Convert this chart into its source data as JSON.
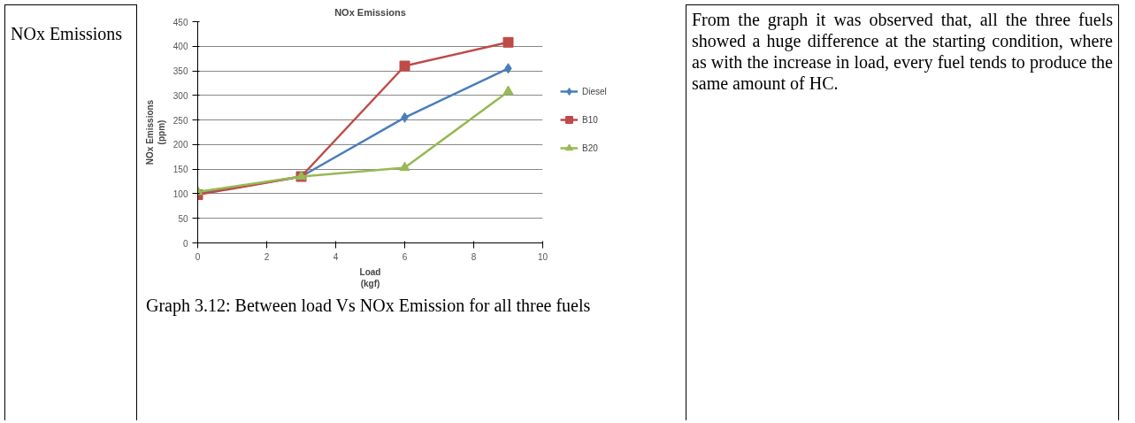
{
  "chart_data": {
    "type": "line",
    "title": "NOx Emissions",
    "xlabel": "Load\n(kgf)",
    "ylabel": "NOx Emissions\n(ppm)",
    "x": [
      0,
      3,
      6,
      9
    ],
    "series": [
      {
        "name": "Diesel",
        "color": "#4a7ebb",
        "marker": "diamond",
        "values": [
          100,
          135,
          255,
          355
        ]
      },
      {
        "name": "B10",
        "color": "#be4b48",
        "marker": "square",
        "values": [
          98,
          135,
          360,
          408
        ]
      },
      {
        "name": "B20",
        "color": "#98b954",
        "marker": "triangle",
        "values": [
          104,
          135,
          153,
          308
        ]
      }
    ],
    "xlim": [
      0,
      10
    ],
    "xticks": [
      0,
      2,
      4,
      6,
      8,
      10
    ],
    "ylim": [
      0,
      450
    ],
    "yticks": [
      0,
      50,
      100,
      150,
      200,
      250,
      300,
      350,
      400,
      450
    ],
    "grid": "y",
    "legend": "right",
    "annotations": [
      "NOx Emissions",
      "Graph 3.12: Between load Vs NOx Emission for all three fuels",
      "From the graph it was observed that, all the three fuels showed a huge difference at the starting condition, where as with the increase in load, every fuel tends to produce the same amount of HC."
    ]
  }
}
